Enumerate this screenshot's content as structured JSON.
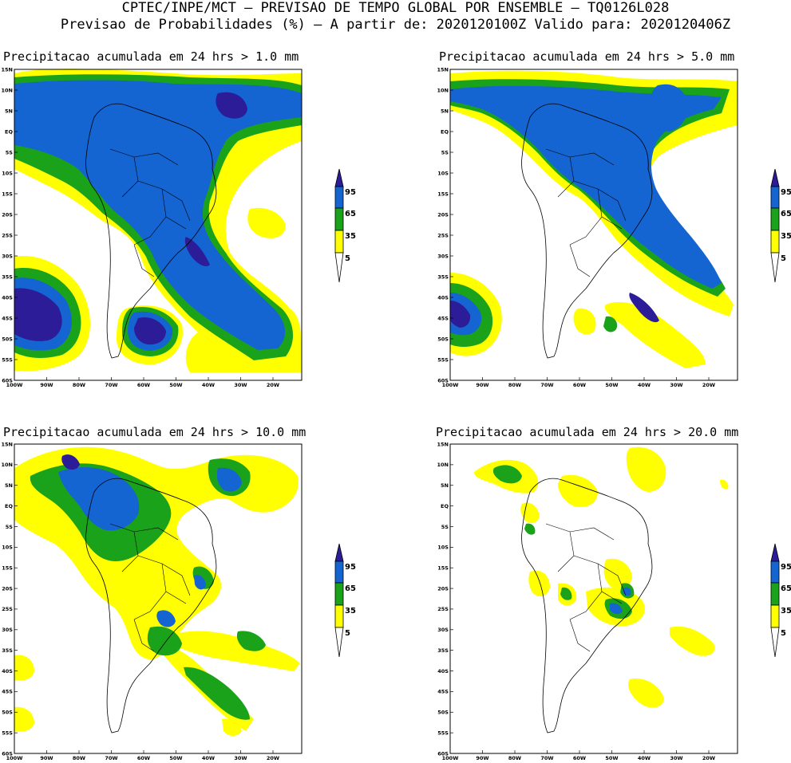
{
  "header": {
    "line1": "CPTEC/INPE/MCT – PREVISAO DE TEMPO GLOBAL POR ENSEMBLE – TQ0126L028",
    "line2": "Previsao de Probabilidades (%) –  A partir de: 2020120100Z  Valido para: 2020120406Z"
  },
  "colors": {
    "yellow": "#ffff00",
    "green": "#1aa31a",
    "blue": "#1464d2",
    "dark_blue": "#2c1c98",
    "land_line": "#000000"
  },
  "axes": {
    "lat_labels": [
      "15N",
      "10N",
      "5N",
      "EQ",
      "5S",
      "10S",
      "15S",
      "20S",
      "25S",
      "30S",
      "35S",
      "40S",
      "45S",
      "50S",
      "55S",
      "60S"
    ],
    "lon_labels": [
      "100W",
      "90W",
      "80W",
      "70W",
      "60W",
      "50W",
      "40W",
      "30W",
      "20W"
    ]
  },
  "colorbar": {
    "labels": [
      "95",
      "65",
      "35",
      "5"
    ]
  },
  "panels": [
    {
      "id": "p1",
      "title": "Precipitacao acumulada em 24 hrs > 1.0 mm"
    },
    {
      "id": "p2",
      "title": "Precipitacao acumulada em 24 hrs > 5.0 mm"
    },
    {
      "id": "p3",
      "title": "Precipitacao acumulada em 24 hrs > 10.0 mm"
    },
    {
      "id": "p4",
      "title": "Precipitacao acumulada em 24 hrs > 20.0 mm"
    }
  ]
}
